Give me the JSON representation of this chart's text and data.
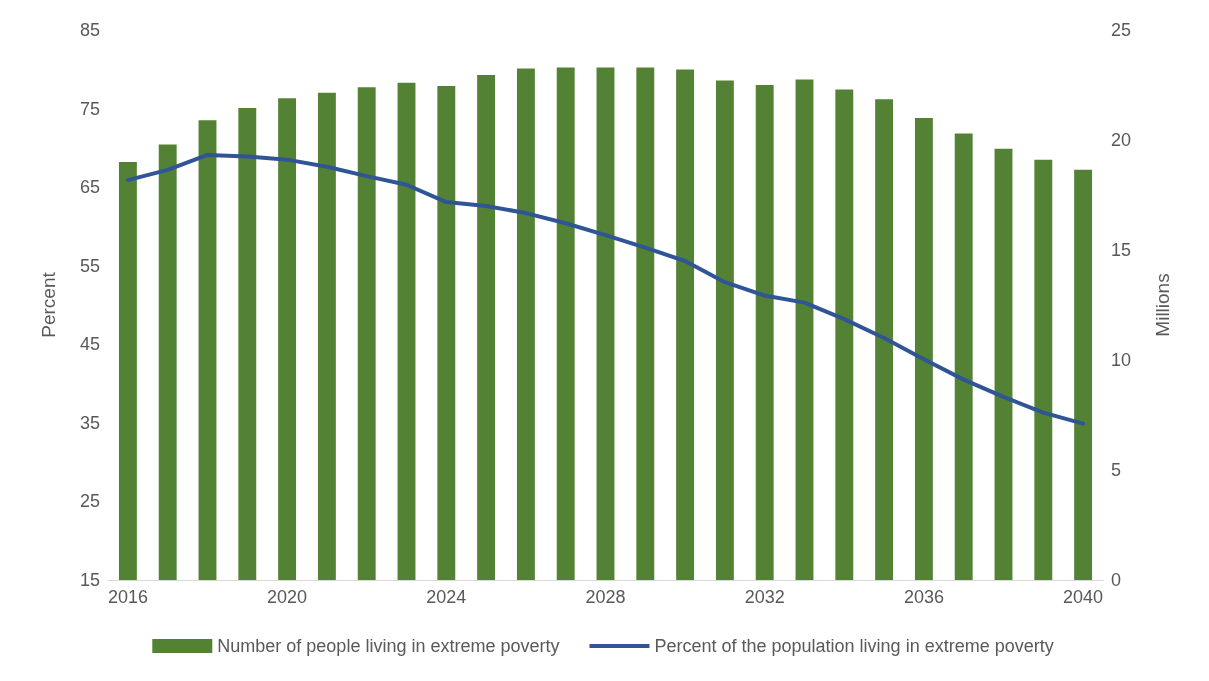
{
  "chart_data": {
    "type": "bar",
    "ylabel": "Percent",
    "y2label": "Millions",
    "categories": [
      "2016",
      null,
      null,
      null,
      "2020",
      null,
      null,
      null,
      "2024",
      null,
      null,
      null,
      "2028",
      null,
      null,
      null,
      "2032",
      null,
      null,
      null,
      "2036",
      null,
      null,
      null,
      "2040"
    ],
    "series": [
      {
        "name": "Number of people living in extreme poverty",
        "axis": "y2",
        "color": "#548235",
        "values": [
          19.0,
          19.8,
          20.9,
          21.45,
          21.9,
          22.15,
          22.4,
          22.6,
          22.45,
          22.95,
          23.25,
          23.3,
          23.3,
          23.3,
          23.2,
          22.7,
          22.5,
          22.75,
          22.3,
          21.85,
          21.0,
          20.3,
          19.6,
          19.1,
          18.65
        ]
      },
      {
        "name": "Percent of the population living in extreme poverty",
        "type": "line",
        "color": "#2f5597",
        "values": [
          65.9,
          67.2,
          69.1,
          68.9,
          68.5,
          67.6,
          66.4,
          65.3,
          63.1,
          62.6,
          61.7,
          60.4,
          58.9,
          57.3,
          55.6,
          52.9,
          51.2,
          50.3,
          48.2,
          45.8,
          43.1,
          40.5,
          38.3,
          36.3,
          34.9
        ]
      }
    ],
    "ylim": [
      15,
      85
    ],
    "yticks": [
      15,
      25,
      35,
      45,
      55,
      65,
      75,
      85
    ],
    "y2lim": [
      0,
      25
    ],
    "y2ticks": [
      0,
      5,
      10,
      15,
      20,
      25
    ],
    "grid": false,
    "legend": "bottom",
    "marker": "none",
    "line_style": "solid"
  }
}
